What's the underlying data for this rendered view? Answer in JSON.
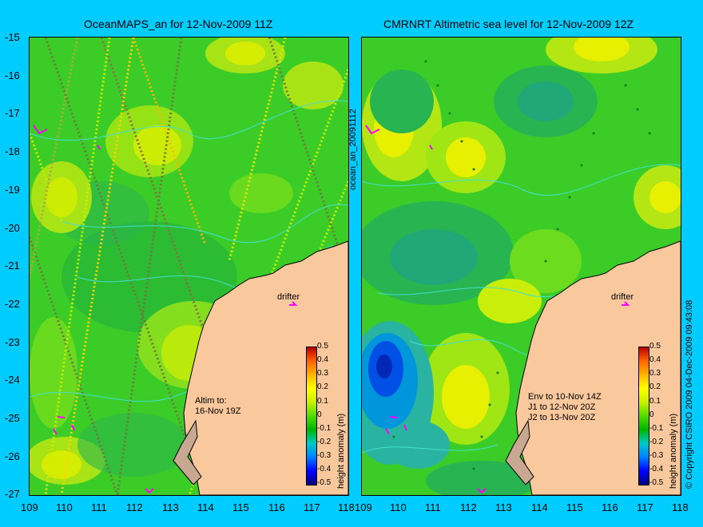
{
  "left_map": {
    "title": "OceanMAPS_an for 12-Nov-2009 11Z",
    "annotation": "Altim to:\n16-Nov 19Z",
    "drifter_label": "drifter"
  },
  "right_map": {
    "title": "CMRNRT Altimetric sea level  for 12-Nov-2009 12Z",
    "annotation": "Env to 10-Nov 14Z\nJ1 to 12-Nov 20Z\nJ2 to 13-Nov 20Z",
    "drifter_label": "drifter"
  },
  "middle_label": "ocean_an_20091112",
  "copyright": "© Copyright CSIRO 2009   04-Dec-2009 09:43:08",
  "colorbar": {
    "label": "height anomaly (m)",
    "ticks": [
      "0.5",
      "0.4",
      "0.3",
      "0.2",
      "0.1",
      "0",
      "-0.1",
      "-0.2",
      "-0.3",
      "-0.4",
      "-0.5"
    ],
    "colors": [
      "#00007f",
      "#0000ff",
      "#0080ff",
      "#00c8c8",
      "#00b400",
      "#50dc00",
      "#c8f000",
      "#ffff00",
      "#ffb400",
      "#ff6400",
      "#b40000"
    ]
  },
  "lat_ticks": [
    "-15",
    "-16",
    "-17",
    "-18",
    "-19",
    "-20",
    "-21",
    "-22",
    "-23",
    "-24",
    "-25",
    "-26",
    "-27"
  ],
  "lon_ticks": [
    "109",
    "110",
    "111",
    "112",
    "113",
    "114",
    "115",
    "116",
    "117",
    "118"
  ],
  "colors": {
    "background": "#00ccff",
    "land": "#f9c89c",
    "ocean_base": "#3ccc28"
  }
}
